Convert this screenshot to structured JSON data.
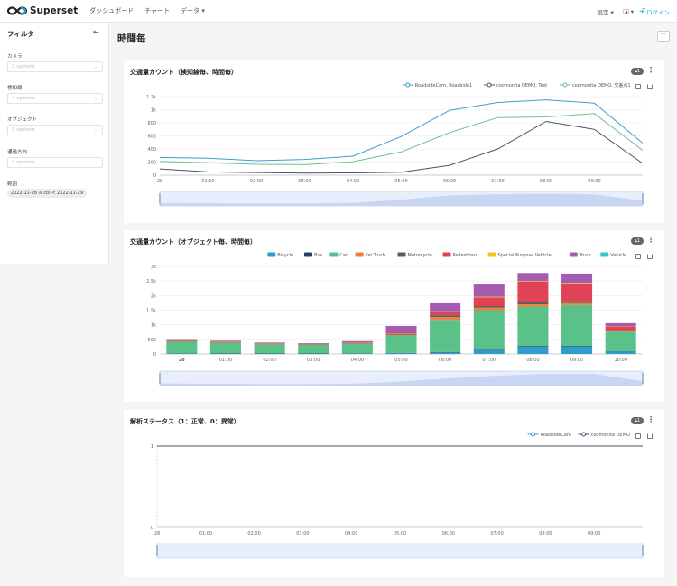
{
  "topbar": {
    "brand": "Superset",
    "nav": [
      "ダッシュボード",
      "チャート",
      "データ ▾"
    ],
    "settings": "設定 ▾",
    "lang_caret": "▾",
    "login": "ログイン"
  },
  "sidebar": {
    "title": "フィルタ",
    "filters": [
      {
        "label": "カメラ",
        "placeholder": "3 options"
      },
      {
        "label": "検知線",
        "placeholder": "4 options"
      },
      {
        "label": "オブジェクト",
        "placeholder": "9 options"
      },
      {
        "label": "通過方向",
        "placeholder": "2 options"
      }
    ],
    "range_label": "範囲",
    "range_value": "2022-11-28 ≤ col < 2022-11-29"
  },
  "page": {
    "title": "時間毎",
    "more": "···"
  },
  "cards": [
    {
      "title": "交通量カウント（検知線毎、時間毎）",
      "badge": "1"
    },
    {
      "title": "交通量カウント（オブジェクト毎、時間毎）",
      "badge": "1"
    },
    {
      "title": "解析ステータス（1：正常、0：異常）",
      "badge": "1"
    }
  ],
  "chart_data": [
    {
      "type": "line",
      "x": [
        "28",
        "01:00",
        "02:00",
        "03:00",
        "04:00",
        "05:00",
        "06:00",
        "07:00",
        "08:00",
        "09:00",
        ""
      ],
      "ylim": [
        0,
        1200
      ],
      "yticks": [
        "0",
        "200",
        "400",
        "600",
        "800",
        "1k",
        "1.2k"
      ],
      "series": [
        {
          "name": "RoadsideCam, Roadside1",
          "color": "#3aa0c8",
          "values": [
            270,
            260,
            220,
            240,
            290,
            590,
            990,
            1110,
            1150,
            1100,
            490
          ]
        },
        {
          "name": "coomonita DEMO, Test",
          "color": "#4a4f66",
          "values": [
            95,
            50,
            40,
            30,
            35,
            45,
            150,
            400,
            820,
            700,
            180
          ]
        },
        {
          "name": "coomonita DEMO, 交差点1",
          "color": "#6cc08e",
          "values": [
            210,
            190,
            165,
            160,
            205,
            355,
            650,
            880,
            890,
            940,
            380
          ]
        }
      ]
    },
    {
      "type": "bar",
      "stacked": true,
      "categories": [
        "28",
        "01:00",
        "02:00",
        "03:00",
        "04:00",
        "05:00",
        "06:00",
        "07:00",
        "08:00",
        "09:00",
        "10:00"
      ],
      "ylim": [
        0,
        3000
      ],
      "yticks": [
        "0",
        "500",
        "1k",
        "1.5k",
        "2k",
        "2.5k",
        "3k"
      ],
      "series": [
        {
          "name": "Bicycle",
          "color": "#2b9fc7",
          "values": [
            15,
            10,
            10,
            10,
            15,
            25,
            50,
            130,
            250,
            250,
            90
          ]
        },
        {
          "name": "Bus",
          "color": "#263f6e",
          "values": [
            5,
            5,
            5,
            5,
            5,
            10,
            15,
            20,
            25,
            25,
            10
          ]
        },
        {
          "name": "Car",
          "color": "#5ac189",
          "values": [
            400,
            370,
            320,
            300,
            330,
            600,
            1100,
            1350,
            1350,
            1400,
            650
          ]
        },
        {
          "name": "Kei Truck",
          "color": "#ef7f3e",
          "values": [
            10,
            10,
            8,
            8,
            10,
            25,
            100,
            90,
            75,
            70,
            20
          ]
        },
        {
          "name": "Motorcycle",
          "color": "#5d5d5d",
          "values": [
            15,
            10,
            8,
            8,
            10,
            20,
            60,
            50,
            75,
            70,
            25
          ]
        },
        {
          "name": "Pedestrian",
          "color": "#e04355",
          "values": [
            20,
            15,
            10,
            10,
            15,
            20,
            120,
            300,
            700,
            600,
            150
          ]
        },
        {
          "name": "Special Purpose Vehicle",
          "color": "#f2c31c",
          "values": [
            5,
            5,
            5,
            5,
            5,
            10,
            15,
            20,
            20,
            20,
            10
          ]
        },
        {
          "name": "Truck",
          "color": "#a55cb0",
          "values": [
            40,
            30,
            25,
            25,
            50,
            250,
            275,
            420,
            280,
            320,
            100
          ]
        },
        {
          "name": "Vehicle",
          "color": "#3cc4c0",
          "values": [
            0,
            0,
            0,
            0,
            0,
            0,
            0,
            0,
            0,
            0,
            0
          ]
        }
      ]
    },
    {
      "type": "line",
      "x": [
        "28",
        "01:00",
        "02:00",
        "03:00",
        "04:00",
        "05:00",
        "06:00",
        "07:00",
        "08:00",
        "09:00",
        ""
      ],
      "ylim": [
        0,
        1
      ],
      "yticks": [
        "0",
        "1"
      ],
      "series": [
        {
          "name": "RoadsideCam",
          "color": "#3aa0c8",
          "values": [
            1,
            1,
            1,
            1,
            1,
            1,
            1,
            1,
            1,
            1,
            1
          ]
        },
        {
          "name": "coomonita DEMO",
          "color": "#4a4f66",
          "values": [
            1,
            1,
            1,
            1,
            1,
            1,
            1,
            1,
            1,
            1,
            1
          ]
        }
      ]
    }
  ]
}
